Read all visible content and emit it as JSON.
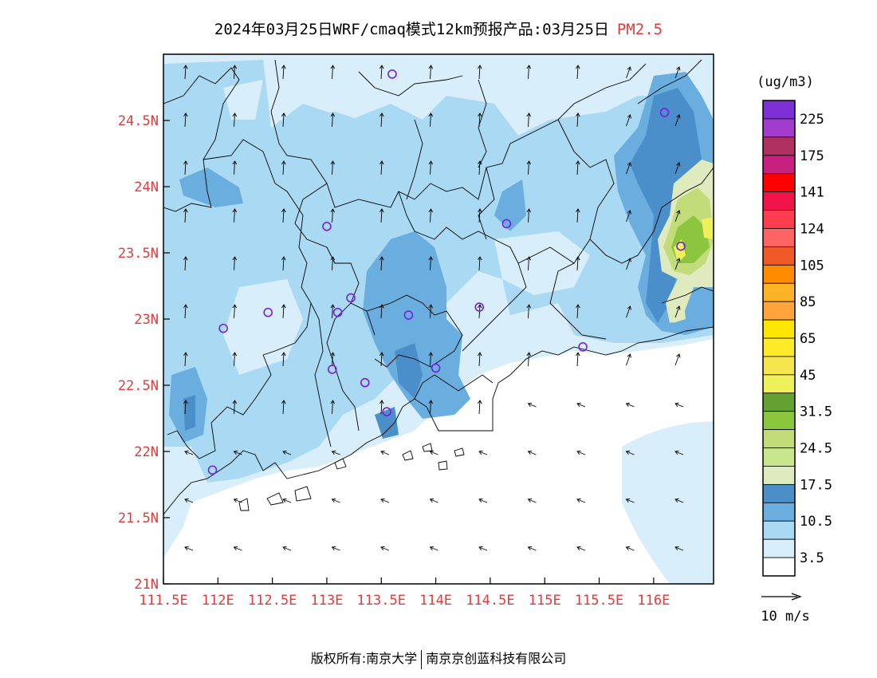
{
  "title": {
    "text": "2024年03月25日WRF/cmaq模式12km预报产品:03月25日",
    "pollutant": "PM2.5"
  },
  "colors": {
    "accent": "#e23b3b",
    "water": "#ffffff",
    "land_low": "#d8eefa",
    "land_mid": "#a9d9f3",
    "land_high": "#6aaee0",
    "land_peak": "#4a8fc9",
    "pollution_light": "#dfeabf",
    "pollution_mid": "#c1dc78",
    "pollution_high": "#8cc63f",
    "pollution_peak": "#f0f05a"
  },
  "axes": {
    "lat_labels": [
      "21N",
      "21.5N",
      "22N",
      "22.5N",
      "23N",
      "23.5N",
      "24N",
      "24.5N"
    ],
    "lat_values": [
      21.0,
      21.5,
      22.0,
      22.5,
      23.0,
      23.5,
      24.0,
      24.5
    ],
    "lon_labels": [
      "111.5E",
      "112E",
      "112.5E",
      "113E",
      "113.5E",
      "114E",
      "114.5E",
      "115E",
      "115.5E",
      "116E"
    ],
    "lon_values": [
      111.5,
      112.0,
      112.5,
      113.0,
      113.5,
      114.0,
      114.5,
      115.0,
      115.5,
      116.0
    ],
    "lon_range": [
      111.5,
      116.55
    ],
    "lat_range": [
      21.0,
      25.0
    ]
  },
  "legend": {
    "unit": "(ug/m3)",
    "labels": [
      "225",
      "175",
      "141",
      "124",
      "105",
      "85",
      "65",
      "45",
      "31.5",
      "24.5",
      "17.5",
      "10.5",
      "3.5"
    ],
    "colors": [
      "#7f2fd6",
      "#a23ccc",
      "#b03060",
      "#c8207f",
      "#ff0000",
      "#f0144a",
      "#ff3c50",
      "#ff6464",
      "#f05a28",
      "#ff8c00",
      "#ffb428",
      "#ffa53c",
      "#ffe600",
      "#ffeb28",
      "#f5e650",
      "#f0f05a",
      "#64a032",
      "#8cc63f",
      "#c1dc78",
      "#c8e68c",
      "#dfeabf",
      "#4a8fc9",
      "#6aaee0",
      "#a9d9f3",
      "#d8eefa",
      "#ffffff"
    ],
    "wind_scale_label": "10 m/s"
  },
  "stations": [
    {
      "lon": 113.6,
      "lat": 24.85
    },
    {
      "lon": 116.1,
      "lat": 24.56
    },
    {
      "lon": 113.0,
      "lat": 23.7
    },
    {
      "lon": 114.65,
      "lat": 23.72
    },
    {
      "lon": 116.25,
      "lat": 23.55
    },
    {
      "lon": 113.22,
      "lat": 23.16
    },
    {
      "lon": 112.46,
      "lat": 23.05
    },
    {
      "lon": 113.1,
      "lat": 23.05
    },
    {
      "lon": 113.75,
      "lat": 23.03
    },
    {
      "lon": 114.4,
      "lat": 23.09
    },
    {
      "lon": 112.05,
      "lat": 22.93
    },
    {
      "lon": 115.35,
      "lat": 22.79
    },
    {
      "lon": 113.05,
      "lat": 22.62
    },
    {
      "lon": 114.0,
      "lat": 22.63
    },
    {
      "lon": 113.35,
      "lat": 22.52
    },
    {
      "lon": 113.55,
      "lat": 22.3
    },
    {
      "lon": 111.95,
      "lat": 21.86
    }
  ],
  "footer": {
    "left": "版权所有:南京大学",
    "right": "南京京创蓝科技有限公司"
  }
}
